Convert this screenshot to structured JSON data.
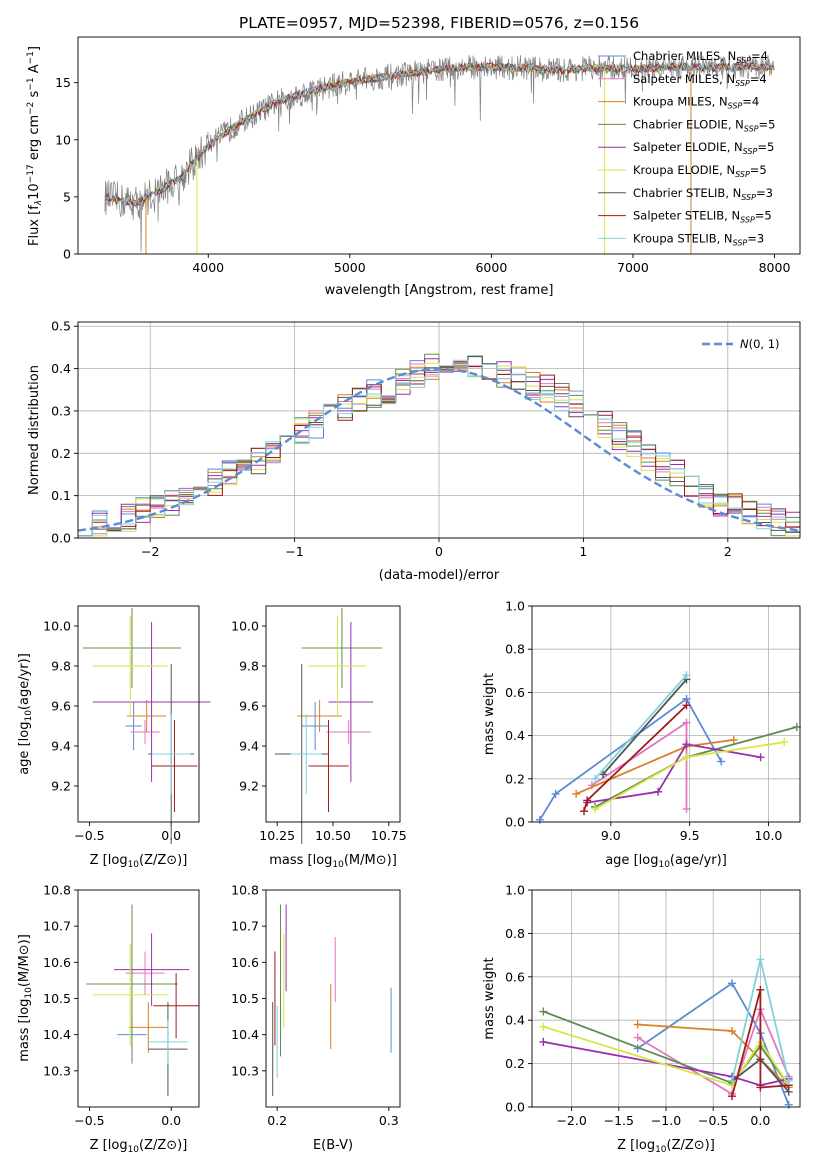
{
  "colors": {
    "Chabrier MILES": "#5b8bd4",
    "Salpeter MILES": "#e377c2",
    "Kroupa MILES": "#d98026",
    "Chabrier ELODIE": "#5f8c4f",
    "Salpeter ELODIE": "#9a2fae",
    "Kroupa ELODIE": "#d6e645",
    "Chabrier STELIB": "#555555",
    "Salpeter STELIB": "#a01b1b",
    "Kroupa STELIB": "#7ed3dc"
  },
  "chart_data": [
    {
      "id": "spectrum",
      "type": "line",
      "title": "PLATE=0957, MJD=52398, FIBERID=0576, z=0.156",
      "xlabel": "wavelength [Angstrom, rest frame]",
      "ylabel": "Flux [fλ10⁻¹⁷ erg cm⁻² s⁻¹ A⁻¹]",
      "xlim": [
        3080,
        8180
      ],
      "ylim": [
        0,
        19
      ],
      "xticks": [
        4000,
        5000,
        6000,
        7000,
        8000
      ],
      "yticks": [
        0,
        5,
        10,
        15
      ],
      "grid": false,
      "legend_position": "top-right",
      "legend": [
        {
          "name": "Chabrier MILES",
          "ssp": "4"
        },
        {
          "name": "Salpeter MILES",
          "ssp": "4"
        },
        {
          "name": "Kroupa MILES",
          "ssp": "4"
        },
        {
          "name": "Chabrier ELODIE",
          "ssp": "5"
        },
        {
          "name": "Salpeter ELODIE",
          "ssp": "5"
        },
        {
          "name": "Kroupa ELODIE",
          "ssp": "5"
        },
        {
          "name": "Chabrier STELIB",
          "ssp": "3"
        },
        {
          "name": "Salpeter STELIB",
          "ssp": "5"
        },
        {
          "name": "Kroupa STELIB",
          "ssp": "3"
        }
      ],
      "continuum": {
        "x": [
          3270,
          3400,
          3500,
          3600,
          3800,
          4000,
          4200,
          4500,
          4800,
          5000,
          5300,
          5600,
          5900,
          6200,
          6500,
          6700,
          7000,
          7300,
          7600,
          7800,
          8000
        ],
        "y": [
          5.0,
          4.6,
          4.5,
          5.2,
          6.6,
          9.5,
          11.3,
          13.4,
          14.5,
          15.1,
          15.6,
          16.1,
          16.4,
          16.3,
          16.1,
          16.3,
          16.2,
          16.4,
          16.3,
          16.4,
          16.3
        ]
      },
      "observed_color": "#808080"
    },
    {
      "id": "residual-histogram",
      "type": "bar",
      "xlabel": "(data-model)/error",
      "ylabel": "Normed distribution",
      "xlim": [
        -2.5,
        2.5
      ],
      "ylim": [
        0,
        0.51
      ],
      "xticks": [
        -2,
        -1,
        0,
        1,
        2
      ],
      "yticks": [
        0.0,
        0.1,
        0.2,
        0.3,
        0.4,
        0.5
      ],
      "grid": true,
      "legend_position": "top-right",
      "legend": [
        "$\\mathcal{N}(0,1)$"
      ],
      "reference_curve": {
        "name": "N(0,1)",
        "mean": 0,
        "sigma": 1,
        "color": "#5b8bd4"
      },
      "bin_width": 0.1,
      "bins_start": -2.5,
      "base_density": [
        0.02,
        0.03,
        0.04,
        0.05,
        0.06,
        0.07,
        0.085,
        0.1,
        0.115,
        0.13,
        0.16,
        0.17,
        0.18,
        0.2,
        0.22,
        0.25,
        0.27,
        0.3,
        0.31,
        0.33,
        0.34,
        0.35,
        0.37,
        0.39,
        0.4,
        0.41,
        0.42,
        0.4,
        0.4,
        0.39,
        0.38,
        0.36,
        0.35,
        0.33,
        0.32,
        0.3,
        0.27,
        0.24,
        0.22,
        0.19,
        0.17,
        0.15,
        0.12,
        0.1,
        0.08,
        0.07,
        0.06,
        0.05,
        0.04,
        0.03
      ],
      "series_count": 9
    },
    {
      "id": "age-vs-metallicity",
      "type": "scatter",
      "xlabel": "Z [log10(Z/Z⊙)]",
      "ylabel": "age  [log10(age/yr)]",
      "xlim": [
        -0.57,
        0.17
      ],
      "ylim": [
        9.02,
        10.1
      ],
      "xticks": [
        -0.5,
        0.0
      ],
      "yticks": [
        9.2,
        9.4,
        9.6,
        9.8,
        10.0
      ],
      "points": [
        {
          "series": "Chabrier MILES",
          "x": -0.23,
          "y": 9.5,
          "xerr": 0.05,
          "yerr": 0.12
        },
        {
          "series": "Salpeter MILES",
          "x": -0.16,
          "y": 9.47,
          "xerr": 0.09,
          "yerr": 0.06
        },
        {
          "series": "Kroupa MILES",
          "x": -0.15,
          "y": 9.55,
          "xerr": 0.12,
          "yerr": 0.08
        },
        {
          "series": "Chabrier ELODIE",
          "x": -0.24,
          "y": 9.89,
          "xerr": 0.3,
          "yerr": 0.2
        },
        {
          "series": "Salpeter ELODIE",
          "x": -0.12,
          "y": 9.62,
          "xerr": 0.36,
          "yerr": 0.4
        },
        {
          "series": "Kroupa ELODIE",
          "x": -0.25,
          "y": 9.8,
          "xerr": 0.23,
          "yerr": 0.25
        },
        {
          "series": "Chabrier STELIB",
          "x": 0.0,
          "y": 9.36,
          "xerr": 0.14,
          "yerr": 0.45
        },
        {
          "series": "Salpeter STELIB",
          "x": 0.02,
          "y": 9.3,
          "xerr": 0.14,
          "yerr": 0.23
        },
        {
          "series": "Kroupa STELIB",
          "x": 0.0,
          "y": 9.36,
          "xerr": 0.12,
          "yerr": 0.2
        }
      ]
    },
    {
      "id": "age-vs-mass",
      "type": "scatter",
      "xlabel": "mass [log10(M/M⊙)]",
      "ylabel": "",
      "xlim": [
        10.2,
        10.8
      ],
      "ylim": [
        9.02,
        10.1
      ],
      "xticks": [
        10.25,
        10.5,
        10.75
      ],
      "yticks": [
        9.2,
        9.4,
        9.6,
        9.8,
        10.0
      ],
      "points": [
        {
          "series": "Chabrier MILES",
          "x": 10.42,
          "y": 9.5,
          "xerr": 0.06,
          "yerr": 0.12
        },
        {
          "series": "Salpeter MILES",
          "x": 10.57,
          "y": 9.47,
          "xerr": 0.1,
          "yerr": 0.06
        },
        {
          "series": "Kroupa MILES",
          "x": 10.44,
          "y": 9.55,
          "xerr": 0.1,
          "yerr": 0.08
        },
        {
          "series": "Chabrier ELODIE",
          "x": 10.54,
          "y": 9.89,
          "xerr": 0.18,
          "yerr": 0.2
        },
        {
          "series": "Salpeter ELODIE",
          "x": 10.58,
          "y": 9.62,
          "xerr": 0.1,
          "yerr": 0.4
        },
        {
          "series": "Kroupa ELODIE",
          "x": 10.52,
          "y": 9.8,
          "xerr": 0.13,
          "yerr": 0.25
        },
        {
          "series": "Chabrier STELIB",
          "x": 10.36,
          "y": 9.36,
          "xerr": 0.12,
          "yerr": 0.45
        },
        {
          "series": "Salpeter STELIB",
          "x": 10.48,
          "y": 9.3,
          "xerr": 0.09,
          "yerr": 0.23
        },
        {
          "series": "Kroupa STELIB",
          "x": 10.38,
          "y": 9.36,
          "xerr": 0.07,
          "yerr": 0.2
        }
      ]
    },
    {
      "id": "mass-weight-vs-age",
      "type": "line",
      "xlabel": "age  [log10(age/yr)]",
      "ylabel": "mass weight",
      "xlim": [
        8.5,
        10.2
      ],
      "ylim": [
        0,
        1.0
      ],
      "xticks": [
        9.0,
        9.5,
        10.0
      ],
      "yticks": [
        0.0,
        0.2,
        0.4,
        0.6,
        0.8,
        1.0
      ],
      "grid": true,
      "series": [
        {
          "name": "Chabrier MILES",
          "x": [
            8.55,
            8.65,
            9.48,
            9.7
          ],
          "y": [
            0.01,
            0.13,
            0.57,
            0.28
          ]
        },
        {
          "name": "Salpeter MILES",
          "x": [
            8.88,
            9.48,
            9.48
          ],
          "y": [
            0.17,
            0.46,
            0.06
          ]
        },
        {
          "name": "Kroupa MILES",
          "x": [
            8.78,
            9.48,
            9.78
          ],
          "y": [
            0.13,
            0.35,
            0.38
          ]
        },
        {
          "name": "Chabrier ELODIE",
          "x": [
            8.9,
            9.48,
            10.18
          ],
          "y": [
            0.07,
            0.3,
            0.44
          ]
        },
        {
          "name": "Salpeter ELODIE",
          "x": [
            8.85,
            9.3,
            9.48,
            9.95
          ],
          "y": [
            0.09,
            0.14,
            0.36,
            0.3
          ]
        },
        {
          "name": "Kroupa ELODIE",
          "x": [
            8.9,
            9.48,
            10.1
          ],
          "y": [
            0.06,
            0.3,
            0.37
          ]
        },
        {
          "name": "Chabrier STELIB",
          "x": [
            8.95,
            9.48
          ],
          "y": [
            0.22,
            0.66
          ]
        },
        {
          "name": "Salpeter STELIB",
          "x": [
            8.83,
            8.85,
            9.48
          ],
          "y": [
            0.05,
            0.1,
            0.54
          ]
        },
        {
          "name": "Kroupa STELIB",
          "x": [
            8.9,
            9.48
          ],
          "y": [
            0.2,
            0.68
          ]
        }
      ]
    },
    {
      "id": "mass-vs-metallicity",
      "type": "scatter",
      "xlabel": "Z [log10(Z/Z⊙)]",
      "ylabel": "mass [log10(M/M⊙)]",
      "xlim": [
        -0.57,
        0.17
      ],
      "ylim": [
        10.2,
        10.8
      ],
      "xticks": [
        -0.5,
        0.0
      ],
      "yticks": [
        10.3,
        10.4,
        10.5,
        10.6,
        10.7,
        10.8
      ],
      "points": [
        {
          "series": "Chabrier MILES",
          "x": -0.24,
          "y": 10.4,
          "xerr": 0.09,
          "yerr": 0.05
        },
        {
          "series": "Salpeter MILES",
          "x": -0.16,
          "y": 10.57,
          "xerr": 0.12,
          "yerr": 0.06
        },
        {
          "series": "Kroupa MILES",
          "x": -0.14,
          "y": 10.42,
          "xerr": 0.12,
          "yerr": 0.07
        },
        {
          "series": "Chabrier ELODIE",
          "x": -0.24,
          "y": 10.54,
          "xerr": 0.28,
          "yerr": 0.22
        },
        {
          "series": "Salpeter ELODIE",
          "x": -0.12,
          "y": 10.58,
          "xerr": 0.23,
          "yerr": 0.1
        },
        {
          "series": "Kroupa ELODIE",
          "x": -0.25,
          "y": 10.51,
          "xerr": 0.23,
          "yerr": 0.14
        },
        {
          "series": "Chabrier STELIB",
          "x": -0.02,
          "y": 10.36,
          "xerr": 0.12,
          "yerr": 0.13
        },
        {
          "series": "Salpeter STELIB",
          "x": 0.03,
          "y": 10.48,
          "xerr": 0.14,
          "yerr": 0.09
        },
        {
          "series": "Kroupa STELIB",
          "x": -0.02,
          "y": 10.38,
          "xerr": 0.12,
          "yerr": 0.06
        }
      ]
    },
    {
      "id": "mass-vs-ebv",
      "type": "scatter",
      "xlabel": "E(B-V)",
      "ylabel": "",
      "xlim": [
        0.19,
        0.31
      ],
      "ylim": [
        10.2,
        10.8
      ],
      "xticks": [
        0.2,
        0.3
      ],
      "yticks": [
        10.3,
        10.4,
        10.5,
        10.6,
        10.7,
        10.8
      ],
      "points": [
        {
          "series": "Chabrier MILES",
          "x": 0.302,
          "y": 10.44,
          "xerr": 0,
          "yerr": 0.09
        },
        {
          "series": "Salpeter MILES",
          "x": 0.252,
          "y": 10.58,
          "xerr": 0,
          "yerr": 0.09
        },
        {
          "series": "Kroupa MILES",
          "x": 0.248,
          "y": 10.45,
          "xerr": 0,
          "yerr": 0.09
        },
        {
          "series": "Chabrier ELODIE",
          "x": 0.203,
          "y": 10.55,
          "xerr": 0,
          "yerr": 0.21
        },
        {
          "series": "Salpeter ELODIE",
          "x": 0.208,
          "y": 10.64,
          "xerr": 0,
          "yerr": 0.12
        },
        {
          "series": "Kroupa ELODIE",
          "x": 0.206,
          "y": 10.55,
          "xerr": 0,
          "yerr": 0.13
        },
        {
          "series": "Chabrier STELIB",
          "x": 0.196,
          "y": 10.36,
          "xerr": 0,
          "yerr": 0.13
        },
        {
          "series": "Salpeter STELIB",
          "x": 0.198,
          "y": 10.5,
          "xerr": 0,
          "yerr": 0.13
        },
        {
          "series": "Kroupa STELIB",
          "x": 0.2,
          "y": 10.38,
          "xerr": 0,
          "yerr": 0.1
        }
      ]
    },
    {
      "id": "mass-weight-vs-metallicity",
      "type": "line",
      "xlabel": "Z [log10(Z/Z⊙)]",
      "ylabel": "mass weight",
      "xlim": [
        -2.42,
        0.42
      ],
      "ylim": [
        0,
        1.0
      ],
      "xticks": [
        -2.0,
        -1.5,
        -1.0,
        -0.5,
        0.0
      ],
      "yticks": [
        0.0,
        0.2,
        0.4,
        0.6,
        0.8,
        1.0
      ],
      "grid": true,
      "series": [
        {
          "name": "Chabrier MILES",
          "x": [
            -1.3,
            -0.3,
            0.0,
            0.3
          ],
          "y": [
            0.27,
            0.57,
            0.34,
            0.01
          ]
        },
        {
          "name": "Salpeter MILES",
          "x": [
            -1.3,
            -0.3,
            0.0,
            0.3
          ],
          "y": [
            0.32,
            0.06,
            0.45,
            0.14
          ]
        },
        {
          "name": "Kroupa MILES",
          "x": [
            -1.3,
            -0.3,
            0.0,
            0.3
          ],
          "y": [
            0.38,
            0.35,
            0.22,
            0.09
          ]
        },
        {
          "name": "Chabrier ELODIE",
          "x": [
            -2.3,
            -0.3,
            0.0,
            0.3
          ],
          "y": [
            0.44,
            0.11,
            0.28,
            0.1
          ]
        },
        {
          "name": "Salpeter ELODIE",
          "x": [
            -2.3,
            -0.3,
            0.0,
            0.3
          ],
          "y": [
            0.3,
            0.14,
            0.1,
            0.13
          ]
        },
        {
          "name": "Kroupa ELODIE",
          "x": [
            -2.3,
            -0.3,
            0.0,
            0.3
          ],
          "y": [
            0.37,
            0.1,
            0.3,
            0.1
          ]
        },
        {
          "name": "Chabrier STELIB",
          "x": [
            -0.3,
            0.0,
            0.3
          ],
          "y": [
            0.12,
            0.22,
            0.07
          ]
        },
        {
          "name": "Salpeter STELIB",
          "x": [
            -0.3,
            0.0,
            0.0,
            0.3
          ],
          "y": [
            0.05,
            0.54,
            0.09,
            0.1
          ]
        },
        {
          "name": "Kroupa STELIB",
          "x": [
            -0.3,
            0.0,
            0.3
          ],
          "y": [
            0.12,
            0.68,
            0.12
          ]
        }
      ]
    }
  ]
}
